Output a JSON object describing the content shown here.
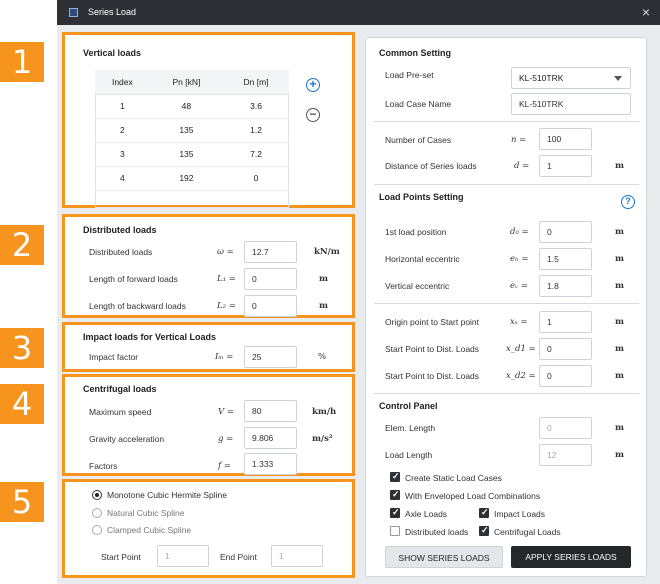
{
  "window": {
    "title": "Series Load",
    "close": "×"
  },
  "badges": [
    "1",
    "2",
    "3",
    "4",
    "5"
  ],
  "vertical": {
    "heading": "Vertical loads",
    "columns": [
      "Index",
      "Pn [kN]",
      "Dn [m]"
    ],
    "rows": [
      [
        "1",
        "48",
        "3.6"
      ],
      [
        "2",
        "135",
        "1.2"
      ],
      [
        "3",
        "135",
        "7.2"
      ],
      [
        "4",
        "192",
        "0"
      ]
    ],
    "add": "+",
    "remove": "−"
  },
  "distributed": {
    "heading": "Distributed loads",
    "rows": [
      {
        "label": "Distributed loads",
        "sym": "ω =",
        "value": "12.7",
        "unit": "kN/m"
      },
      {
        "label": "Length of forward loads",
        "sym": "L₁ =",
        "value": "0",
        "unit": "m"
      },
      {
        "label": "Length of backward loads",
        "sym": "L₂ =",
        "value": "0",
        "unit": "m"
      }
    ]
  },
  "impact": {
    "heading": "Impact loads for Vertical Loads",
    "label": "Impact factor",
    "sym": "Iₘ =",
    "value": "25",
    "unit": "%"
  },
  "centrifugal": {
    "heading": "Centrifugal loads",
    "rows": [
      {
        "label": "Maximum speed",
        "sym": "V =",
        "value": "80",
        "unit": "km/h"
      },
      {
        "label": "Gravity acceleration",
        "sym": "g =",
        "value": "9.806",
        "unit": "m/s²"
      },
      {
        "label": "Factors",
        "sym": "f =",
        "value": "1.333",
        "unit": ""
      }
    ]
  },
  "spline": {
    "options": [
      "Monotone Cubic Hermite Spline",
      "Natural Cubic Spline",
      "Clamped Cubic Spline"
    ],
    "selected": 0,
    "start_label": "Start Point",
    "start_placeholder": "1",
    "end_label": "End Point",
    "end_placeholder": "1"
  },
  "common": {
    "heading": "Common Setting",
    "preset_label": "Load Pre-set",
    "preset_value": "KL-510TRK",
    "case_label": "Load Case Name",
    "case_value": "KL-510TRK",
    "cases_label": "Number of Cases",
    "cases_sym": "n =",
    "cases_value": "100",
    "dist_label": "Distance of Series loads",
    "dist_sym": "d =",
    "dist_value": "1",
    "dist_unit": "m"
  },
  "points": {
    "heading": "Load Points Setting",
    "help": "?",
    "rows": [
      {
        "label": "1st load position",
        "sym": "d₀ =",
        "value": "0",
        "unit": "m"
      },
      {
        "label": "Horizontal eccentric",
        "sym": "eₕ =",
        "value": "1.5",
        "unit": "m"
      },
      {
        "label": "Vertical eccentric",
        "sym": "eᵥ =",
        "value": "1.8",
        "unit": "m"
      },
      {
        "label": "Origin point to Start point",
        "sym": "xₛ =",
        "value": "1",
        "unit": "m"
      },
      {
        "label": "Start Point to Dist. Loads",
        "sym": "x_d1 =",
        "value": "0",
        "unit": "m"
      },
      {
        "label": "Start Point to Dist. Loads",
        "sym": "x_d2 =",
        "value": "0",
        "unit": "m"
      }
    ]
  },
  "control": {
    "heading": "Control Panel",
    "elem_label": "Elem. Length",
    "elem_value": "0",
    "elem_unit": "m",
    "load_label": "Load Length",
    "load_value": "12",
    "load_unit": "m",
    "checks": [
      {
        "label": "Create Static Load Cases",
        "checked": true
      },
      {
        "label": "With Enveloped Load Combinations",
        "checked": true
      },
      {
        "label": "Axle Loads",
        "checked": true
      },
      {
        "label": "Impact Loads",
        "checked": true
      },
      {
        "label": "Distributed loads",
        "checked": false
      },
      {
        "label": "Centrifugal Loads",
        "checked": true
      }
    ],
    "show_button": "SHOW SERIES LOADS",
    "apply_button": "APPLY SERIES LOADS"
  },
  "colors": {
    "accent": "#f7941d",
    "titlebar": "#2e3035",
    "link": "#1a73c9"
  }
}
